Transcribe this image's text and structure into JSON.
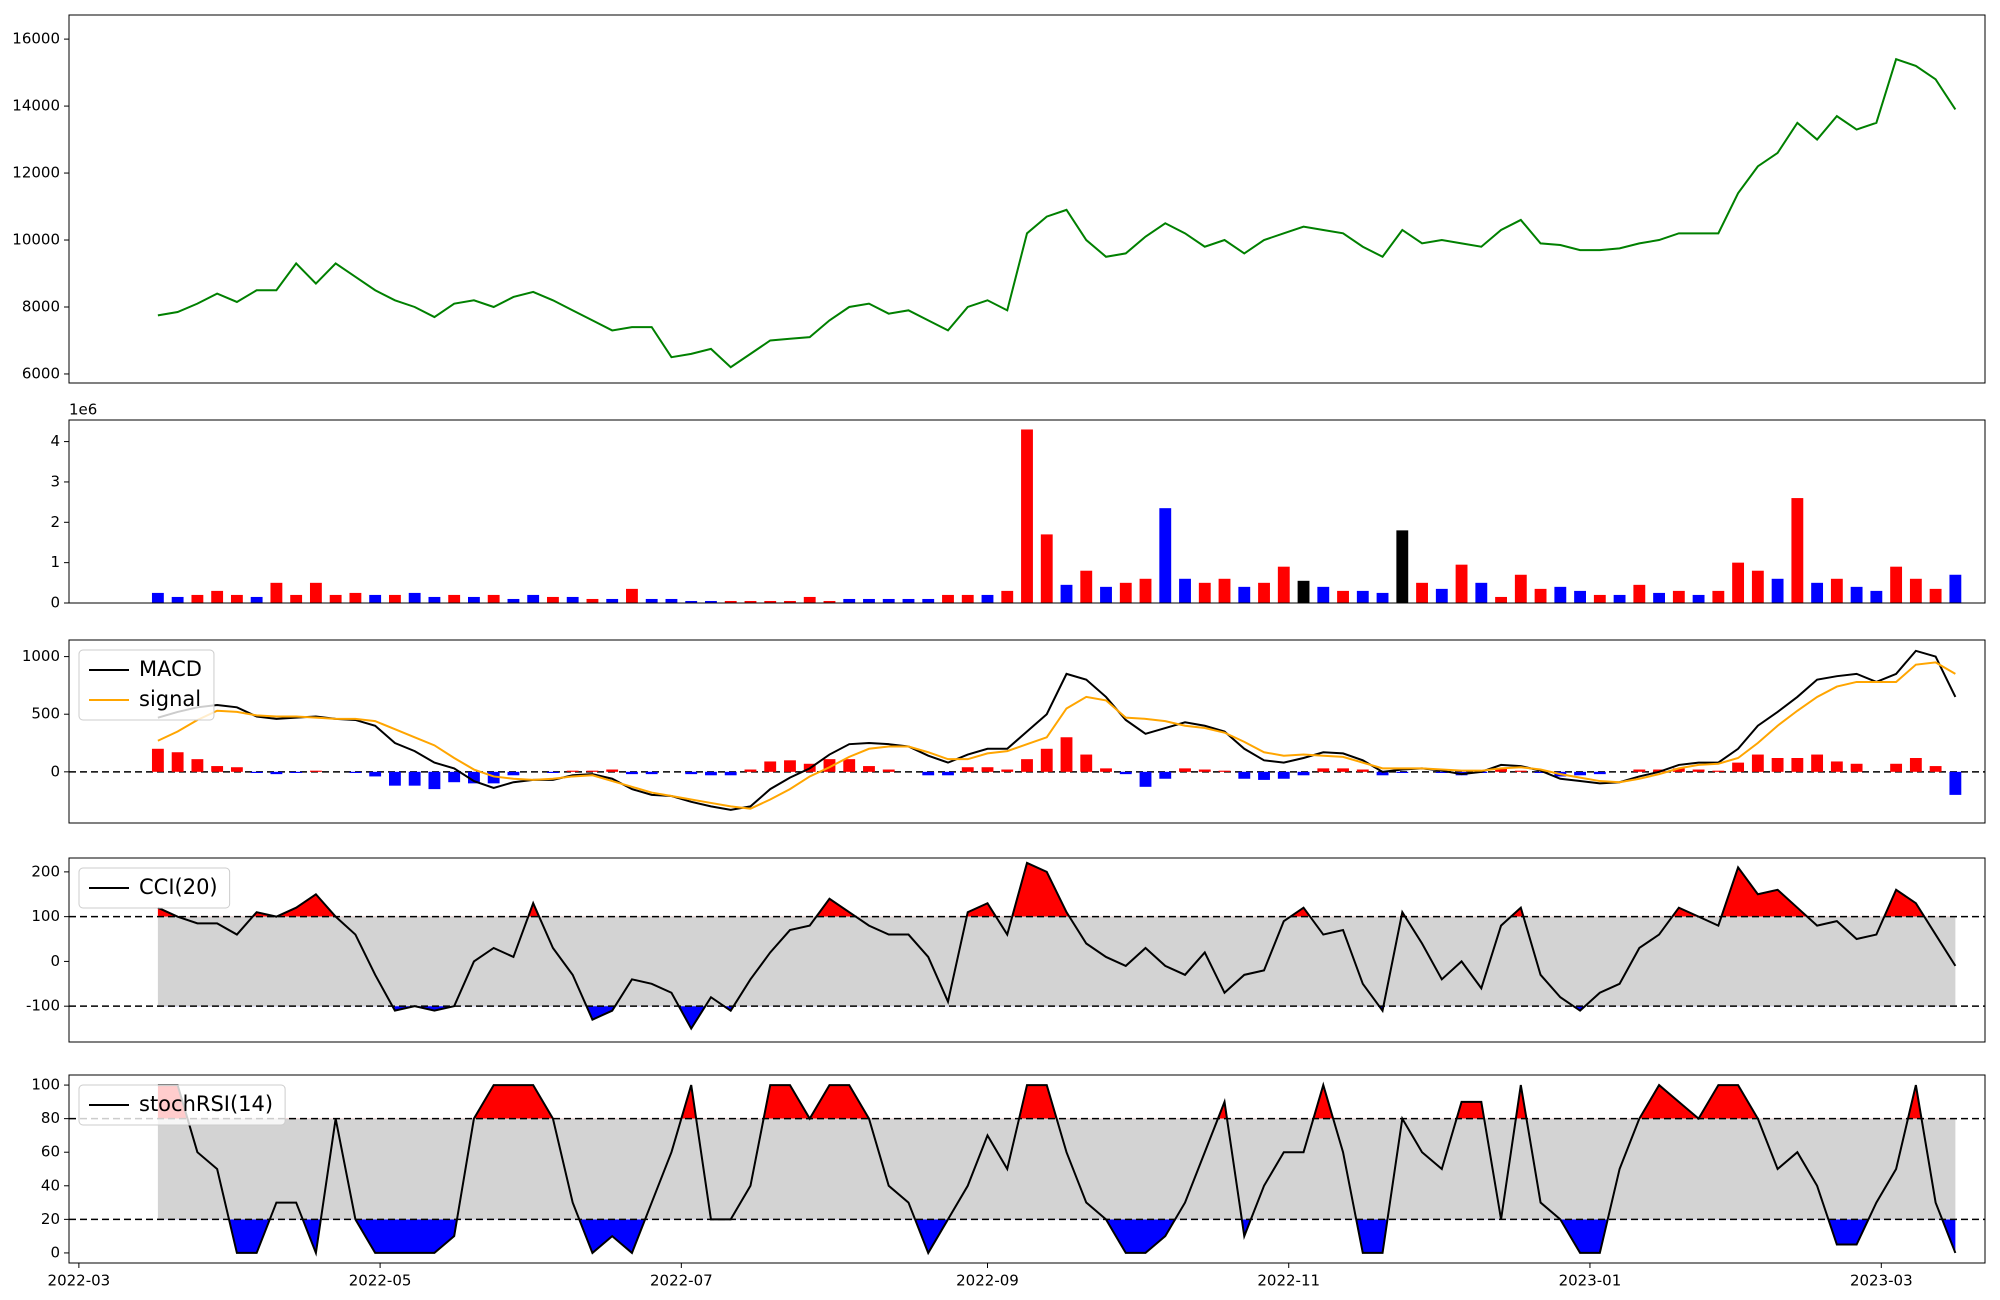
{
  "chart_data": [
    {
      "type": "line",
      "ylim": [
        5730,
        16720
      ],
      "yticks": [
        6000,
        8000,
        10000,
        12000,
        14000,
        16000
      ],
      "series": [
        {
          "color": "green",
          "values": [
            7750,
            7850,
            8100,
            8400,
            8150,
            8500,
            8500,
            9300,
            8700,
            9300,
            8900,
            8500,
            8200,
            8000,
            7700,
            8100,
            8200,
            8000,
            8300,
            8450,
            8200,
            7900,
            7600,
            7300,
            7400,
            7400,
            6500,
            6600,
            6750,
            6200,
            6600,
            7000,
            7050,
            7100,
            7600,
            8000,
            8100,
            7800,
            7900,
            7600,
            7300,
            8000,
            8200,
            7900,
            10200,
            10700,
            10900,
            10000,
            9500,
            9600,
            10100,
            10500,
            10200,
            9800,
            10000,
            9600,
            10000,
            10200,
            10400,
            10300,
            10200,
            9800,
            9500,
            10300,
            9900,
            10000,
            9900,
            9800,
            10300,
            10600,
            9900,
            9850,
            9700,
            9700,
            9750,
            9900,
            10000,
            10200,
            10200,
            10200,
            11400,
            12200,
            12600,
            13500,
            13000,
            13700,
            13300,
            13500,
            15400,
            15200,
            14800,
            13900
          ]
        }
      ]
    },
    {
      "type": "bar",
      "ylim": [
        0,
        4535000
      ],
      "offset_label": "1e6",
      "yticks": [
        0,
        {
          "value": 1000000,
          "label": "1"
        },
        {
          "value": 2000000,
          "label": "2"
        },
        {
          "value": 3000000,
          "label": "3"
        },
        {
          "value": 4000000,
          "label": "4"
        }
      ],
      "values": [
        250000,
        150000,
        200000,
        300000,
        200000,
        150000,
        500000,
        200000,
        500000,
        200000,
        250000,
        200000,
        200000,
        250000,
        150000,
        200000,
        150000,
        200000,
        100000,
        200000,
        150000,
        150000,
        100000,
        100000,
        350000,
        100000,
        100000,
        50000,
        50000,
        50000,
        50000,
        50000,
        50000,
        150000,
        50000,
        100000,
        100000,
        100000,
        100000,
        100000,
        200000,
        200000,
        200000,
        300000,
        4300000,
        1700000,
        450000,
        800000,
        400000,
        500000,
        600000,
        2350000,
        600000,
        500000,
        600000,
        400000,
        500000,
        900000,
        550000,
        400000,
        300000,
        300000,
        250000,
        1800000,
        500000,
        350000,
        950000,
        500000,
        150000,
        700000,
        350000,
        400000,
        300000,
        200000,
        200000,
        450000,
        250000,
        300000,
        200000,
        300000,
        1000000,
        800000,
        600000,
        2600000,
        500000,
        600000,
        400000,
        300000,
        900000,
        600000,
        350000,
        700000
      ],
      "colors": [
        "blue",
        "blue",
        "red",
        "red",
        "red",
        "blue",
        "red",
        "red",
        "red",
        "red",
        "red",
        "blue",
        "red",
        "blue",
        "blue",
        "red",
        "blue",
        "red",
        "blue",
        "blue",
        "red",
        "blue",
        "red",
        "blue",
        "red",
        "blue",
        "blue",
        "blue",
        "blue",
        "red",
        "red",
        "red",
        "red",
        "red",
        "red",
        "blue",
        "blue",
        "blue",
        "blue",
        "blue",
        "red",
        "red",
        "blue",
        "red",
        "red",
        "red",
        "blue",
        "red",
        "blue",
        "red",
        "red",
        "blue",
        "blue",
        "red",
        "red",
        "blue",
        "red",
        "red",
        "black",
        "blue",
        "red",
        "blue",
        "blue",
        "black",
        "red",
        "blue",
        "red",
        "blue",
        "red",
        "red",
        "red",
        "blue",
        "blue",
        "red",
        "blue",
        "red",
        "blue",
        "red",
        "blue",
        "red",
        "red",
        "red",
        "blue",
        "red",
        "blue",
        "red",
        "blue",
        "blue",
        "red",
        "red",
        "red",
        "blue"
      ]
    },
    {
      "type": "line",
      "ylim": [
        -444,
        1144
      ],
      "yticks": [
        0,
        500,
        1000
      ],
      "reference_lines": [
        0
      ],
      "legend": "upper left",
      "series": [
        {
          "name": "MACD",
          "color": "black",
          "values": [
            470,
            520,
            560,
            580,
            560,
            480,
            460,
            470,
            480,
            460,
            450,
            400,
            250,
            180,
            80,
            30,
            -80,
            -140,
            -90,
            -70,
            -70,
            -30,
            -20,
            -60,
            -150,
            -200,
            -210,
            -260,
            -300,
            -330,
            -300,
            -150,
            -50,
            30,
            150,
            240,
            250,
            240,
            220,
            140,
            80,
            150,
            200,
            200,
            350,
            500,
            850,
            800,
            650,
            450,
            330,
            380,
            430,
            400,
            350,
            200,
            100,
            80,
            120,
            170,
            160,
            100,
            0,
            20,
            30,
            10,
            -20,
            0,
            60,
            50,
            10,
            -60,
            -80,
            -100,
            -90,
            -40,
            0,
            60,
            80,
            80,
            200,
            400,
            520,
            650,
            800,
            830,
            850,
            780,
            850,
            1050,
            1000,
            650
          ]
        },
        {
          "name": "signal",
          "color": "orange",
          "values": [
            270,
            350,
            450,
            530,
            520,
            490,
            480,
            480,
            470,
            460,
            460,
            440,
            370,
            300,
            230,
            120,
            20,
            -40,
            -60,
            -70,
            -60,
            -40,
            -30,
            -80,
            -130,
            -180,
            -210,
            -240,
            -270,
            -300,
            -320,
            -240,
            -150,
            -40,
            40,
            130,
            200,
            220,
            220,
            170,
            110,
            110,
            160,
            180,
            240,
            300,
            550,
            650,
            620,
            470,
            460,
            440,
            400,
            380,
            340,
            260,
            170,
            140,
            150,
            140,
            130,
            80,
            30,
            30,
            30,
            20,
            10,
            10,
            30,
            40,
            20,
            -20,
            -50,
            -80,
            -90,
            -60,
            -20,
            30,
            60,
            70,
            120,
            250,
            400,
            530,
            650,
            740,
            780,
            780,
            780,
            930,
            950,
            850
          ]
        }
      ],
      "histogram": {
        "positive_color": "red",
        "negative_color": "blue",
        "values": [
          200,
          170,
          110,
          50,
          40,
          -10,
          -20,
          -10,
          10,
          0,
          -10,
          -40,
          -120,
          -120,
          -150,
          -90,
          -100,
          -100,
          -30,
          0,
          -10,
          10,
          10,
          20,
          -20,
          -20,
          0,
          -20,
          -30,
          -30,
          20,
          90,
          100,
          70,
          110,
          110,
          50,
          20,
          0,
          -30,
          -30,
          40,
          40,
          20,
          110,
          200,
          300,
          150,
          30,
          -20,
          -130,
          -60,
          30,
          20,
          10,
          -60,
          -70,
          -60,
          -30,
          30,
          30,
          20,
          -30,
          -10,
          0,
          -10,
          -30,
          -10,
          30,
          10,
          -10,
          -40,
          -30,
          -20,
          0,
          20,
          20,
          30,
          20,
          10,
          80,
          150,
          120,
          120,
          150,
          90,
          70,
          0,
          70,
          120,
          50,
          -200
        ]
      }
    },
    {
      "type": "line",
      "ylim": [
        -180,
        231
      ],
      "yticks": [
        -100,
        0,
        100,
        200
      ],
      "bounds": [
        -100,
        100
      ],
      "band_color": "lightgray",
      "above_color": "red",
      "below_color": "blue",
      "legend": "upper left",
      "series": [
        {
          "name": "CCI(20)",
          "color": "black",
          "values": [
            120,
            100,
            85,
            85,
            60,
            110,
            100,
            120,
            150,
            100,
            60,
            -30,
            -110,
            -100,
            -110,
            -100,
            0,
            30,
            10,
            130,
            30,
            -30,
            -130,
            -110,
            -40,
            -50,
            -70,
            -150,
            -80,
            -110,
            -40,
            20,
            70,
            80,
            140,
            110,
            80,
            60,
            60,
            10,
            -90,
            110,
            130,
            60,
            220,
            200,
            110,
            40,
            10,
            -10,
            30,
            -10,
            -30,
            20,
            -70,
            -30,
            -20,
            90,
            120,
            60,
            70,
            -50,
            -110,
            110,
            40,
            -40,
            0,
            -60,
            80,
            120,
            -30,
            -80,
            -110,
            -70,
            -50,
            30,
            60,
            120,
            100,
            80,
            210,
            150,
            160,
            120,
            80,
            90,
            50,
            60,
            160,
            130,
            60,
            -10
          ]
        }
      ]
    },
    {
      "type": "line",
      "ylim": [
        -6,
        106
      ],
      "yticks": [
        0,
        20,
        40,
        60,
        80,
        100
      ],
      "bounds": [
        20,
        80
      ],
      "band_color": "lightgray",
      "above_color": "red",
      "below_color": "blue",
      "legend": "upper left",
      "xlim": [
        -2,
        386
      ],
      "xticks": [
        {
          "value": 0,
          "label": "2022-03"
        },
        {
          "value": 61,
          "label": "2022-05"
        },
        {
          "value": 122,
          "label": "2022-07"
        },
        {
          "value": 184,
          "label": "2022-09"
        },
        {
          "value": 245,
          "label": "2022-11"
        },
        {
          "value": 306,
          "label": "2023-01"
        },
        {
          "value": 365,
          "label": "2023-03"
        }
      ],
      "x": [
        16,
        20,
        24,
        28,
        32,
        36,
        40,
        44,
        48,
        52,
        56,
        60,
        64,
        68,
        72,
        76,
        80,
        84,
        88,
        92,
        96,
        100,
        104,
        108,
        112,
        116,
        120,
        124,
        128,
        132,
        136,
        140,
        144,
        148,
        152,
        156,
        160,
        164,
        168,
        172,
        176,
        180,
        184,
        188,
        192,
        196,
        200,
        204,
        208,
        212,
        216,
        220,
        224,
        228,
        232,
        236,
        240,
        244,
        248,
        252,
        256,
        260,
        264,
        268,
        272,
        276,
        280,
        284,
        288,
        292,
        296,
        300,
        304,
        308,
        312,
        316,
        320,
        324,
        328,
        332,
        336,
        340,
        344,
        348,
        352,
        356,
        360,
        364,
        368,
        372,
        376,
        380
      ],
      "series": [
        {
          "name": "stochRSI(14)",
          "color": "black",
          "values": [
            100,
            100,
            60,
            50,
            0,
            0,
            30,
            30,
            0,
            80,
            20,
            0,
            0,
            0,
            0,
            10,
            80,
            100,
            100,
            100,
            80,
            30,
            0,
            10,
            0,
            30,
            60,
            100,
            20,
            20,
            40,
            100,
            100,
            80,
            100,
            100,
            80,
            40,
            30,
            0,
            20,
            40,
            70,
            50,
            100,
            100,
            60,
            30,
            20,
            0,
            0,
            10,
            30,
            60,
            90,
            10,
            40,
            60,
            60,
            100,
            60,
            0,
            0,
            80,
            60,
            50,
            90,
            90,
            20,
            100,
            30,
            20,
            0,
            0,
            50,
            80,
            100,
            90,
            80,
            100,
            100,
            80,
            50,
            60,
            40,
            5,
            5,
            30,
            50,
            100,
            30,
            0
          ]
        }
      ]
    }
  ]
}
